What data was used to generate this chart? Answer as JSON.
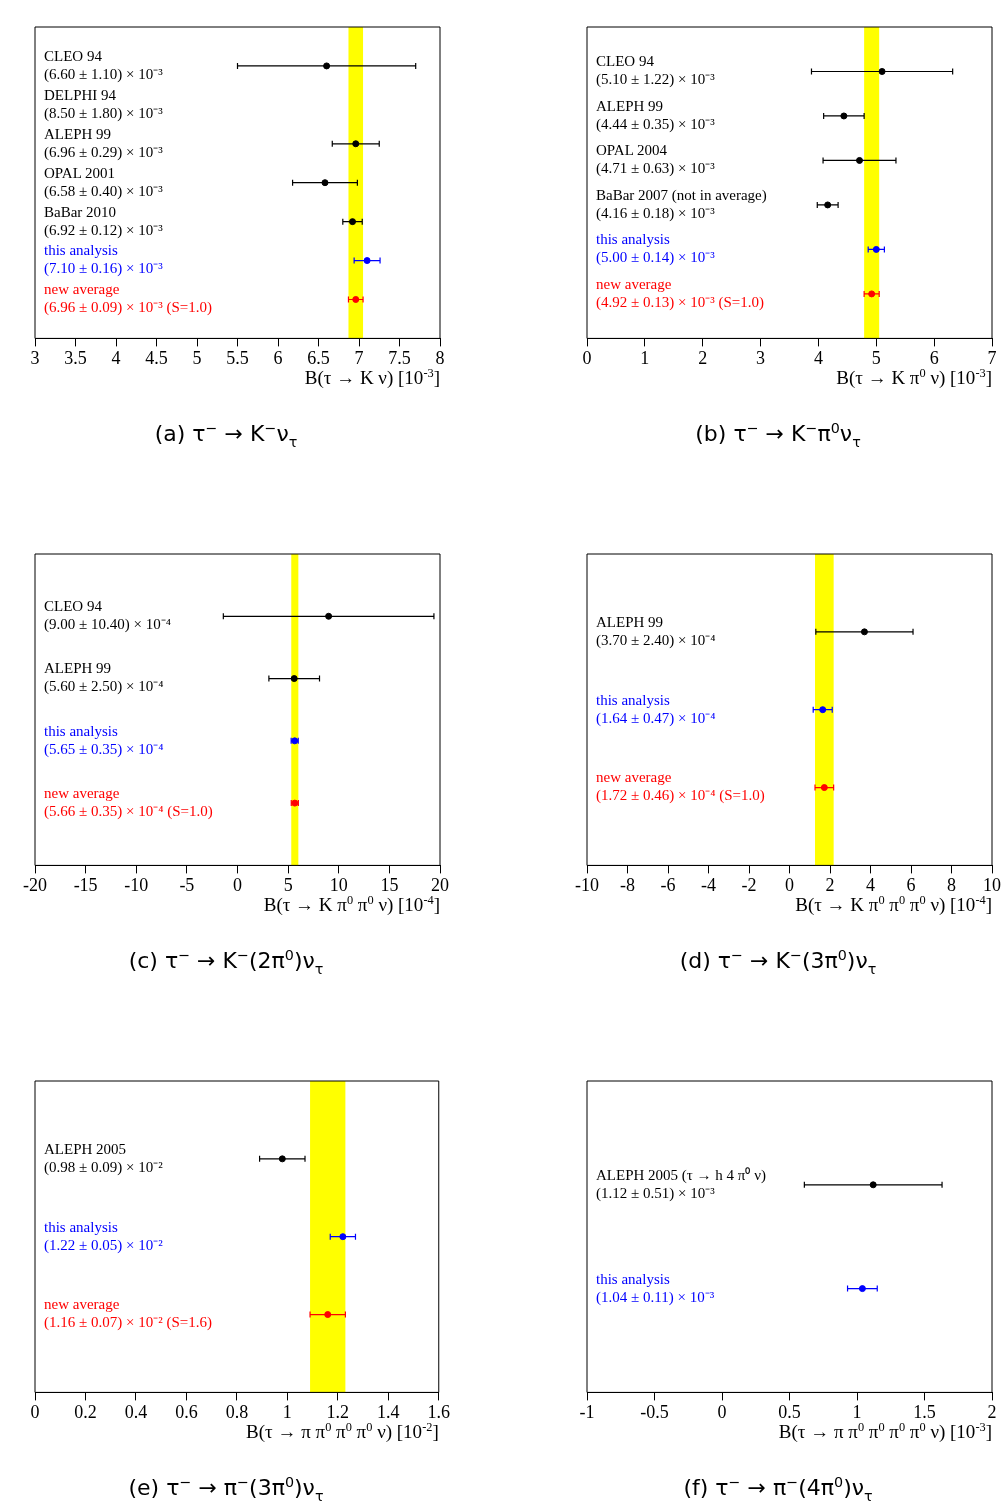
{
  "chart_data": [
    {
      "type": "scatter",
      "orientation": "horizontal",
      "title": "(a) τ$^{−}$ → K$^{−}$ν$_{τ}$",
      "xlabel": "B(τ → K ν) [10$^{-3}$]",
      "categories": [
        "CLEO 94\n(6.60 ± 1.10) × 10⁻³",
        "DELPHI 94\n(8.50 ± 1.80) × 10⁻³",
        "ALEPH 99\n(6.96 ± 0.29) × 10⁻³",
        "OPAL 2001\n(6.58 ± 0.40) × 10⁻³",
        "BaBar 2010\n(6.92 ± 0.12) × 10⁻³",
        "this analysis\n(7.10 ± 0.16) × 10⁻³",
        "new average\n(6.96 ± 0.09) × 10⁻³ (S=1.0)"
      ],
      "values": [
        6.6,
        null,
        6.96,
        6.58,
        6.92,
        7.1,
        6.96
      ],
      "errors": [
        1.1,
        null,
        0.29,
        0.4,
        0.12,
        0.16,
        0.09
      ],
      "colors": [
        "#000000",
        "#000000",
        "#000000",
        "#000000",
        "#000000",
        "#0000ff",
        "#ff0000"
      ],
      "xlim": [
        3,
        8
      ],
      "xticks": [
        3,
        3.5,
        4,
        4.5,
        5,
        5.5,
        6,
        6.5,
        7,
        7.5,
        8
      ],
      "bands": [
        {
          "axis": "x",
          "from": 6.87,
          "to": 7.05,
          "color": "#ffff00"
        }
      ]
    },
    {
      "type": "scatter",
      "orientation": "horizontal",
      "title": "(b) τ$^{−}$ → K$^{−}$π$^{0}$ν$_{τ}$",
      "xlabel": "B(τ → K π$^{0}$ ν) [10$^{-3}$]",
      "categories": [
        "CLEO 94\n(5.10 ± 1.22) × 10⁻³",
        "ALEPH 99\n(4.44 ± 0.35) × 10⁻³",
        "OPAL 2004\n(4.71 ± 0.63) × 10⁻³",
        "BaBar 2007 (not in average)\n(4.16 ± 0.18) × 10⁻³",
        "this analysis\n(5.00 ± 0.14) × 10⁻³",
        "new average\n(4.92 ± 0.13) × 10⁻³ (S=1.0)"
      ],
      "values": [
        5.1,
        4.44,
        4.71,
        4.16,
        5.0,
        4.92
      ],
      "errors": [
        1.22,
        0.35,
        0.63,
        0.18,
        0.14,
        0.13
      ],
      "colors": [
        "#000000",
        "#000000",
        "#000000",
        "#000000",
        "#0000ff",
        "#ff0000"
      ],
      "xlim": [
        0,
        7
      ],
      "xticks": [
        0,
        1,
        2,
        3,
        4,
        5,
        6,
        7
      ],
      "bands": [
        {
          "axis": "x",
          "from": 4.79,
          "to": 5.05,
          "color": "#ffff00"
        }
      ]
    },
    {
      "type": "scatter",
      "orientation": "horizontal",
      "title": "(c) τ$^{−}$ → K$^{−}$(2π$^{0}$)ν$_{τ}$",
      "xlabel": "B(τ → K π$^{0}$ π$^{0}$ ν) [10$^{-4}$]",
      "categories": [
        "CLEO 94\n(9.00 ± 10.40) × 10⁻⁴",
        "ALEPH 99\n(5.60 ± 2.50) × 10⁻⁴",
        "this analysis\n(5.65 ± 0.35) × 10⁻⁴",
        "new average\n(5.66 ± 0.35) × 10⁻⁴ (S=1.0)"
      ],
      "values": [
        9.0,
        5.6,
        5.65,
        5.66
      ],
      "errors": [
        10.4,
        2.5,
        0.35,
        0.35
      ],
      "colors": [
        "#000000",
        "#000000",
        "#0000ff",
        "#ff0000"
      ],
      "xlim": [
        -20,
        20
      ],
      "xticks": [
        -20,
        -15,
        -10,
        -5,
        0,
        5,
        10,
        15,
        20
      ],
      "bands": [
        {
          "axis": "x",
          "from": 5.31,
          "to": 6.01,
          "color": "#ffff00"
        }
      ]
    },
    {
      "type": "scatter",
      "orientation": "horizontal",
      "title": "(d) τ$^{−}$ → K$^{−}$(3π$^{0}$)ν$_{τ}$",
      "xlabel": "B(τ → K π$^{0}$ π$^{0}$ π$^{0}$ ν) [10$^{-4}$]",
      "categories": [
        "ALEPH 99\n(3.70 ± 2.40) × 10⁻⁴",
        "this analysis\n(1.64 ± 0.47) × 10⁻⁴",
        "new average\n(1.72 ± 0.46) × 10⁻⁴ (S=1.0)"
      ],
      "values": [
        3.7,
        1.64,
        1.72
      ],
      "errors": [
        2.4,
        0.47,
        0.46
      ],
      "colors": [
        "#000000",
        "#0000ff",
        "#ff0000"
      ],
      "xlim": [
        -10,
        10
      ],
      "xticks": [
        -10,
        -8,
        -6,
        -4,
        -2,
        0,
        2,
        4,
        6,
        8,
        10
      ],
      "bands": [
        {
          "axis": "x",
          "from": 1.26,
          "to": 2.18,
          "color": "#ffff00"
        }
      ]
    },
    {
      "type": "scatter",
      "orientation": "horizontal",
      "title": "(e) τ$^{−}$ → π$^{−}$(3π$^{0}$)ν$_{τ}$",
      "xlabel": "B(τ → π π$^{0}$ π$^{0}$ π$^{0}$ ν) [10$^{-2}$]",
      "categories": [
        "ALEPH 2005\n(0.98 ± 0.09) × 10⁻²",
        "this analysis\n(1.22 ± 0.05) × 10⁻²",
        "new average\n(1.16 ± 0.07) × 10⁻² (S=1.6)"
      ],
      "values": [
        0.98,
        1.22,
        1.16
      ],
      "errors": [
        0.09,
        0.05,
        0.07
      ],
      "colors": [
        "#000000",
        "#0000ff",
        "#ff0000"
      ],
      "xlim": [
        0,
        1.6
      ],
      "xticks": [
        0,
        0.2,
        0.4,
        0.6,
        0.8,
        1,
        1.2,
        1.4,
        1.6
      ],
      "bands": [
        {
          "axis": "x",
          "from": 1.09,
          "to": 1.23,
          "color": "#ffff00"
        }
      ]
    },
    {
      "type": "scatter",
      "orientation": "horizontal",
      "title": "(f) τ$^{−}$ → π$^{−}$(4π$^{0}$)ν$_{τ}$",
      "xlabel": "B(τ → π π$^{0}$ π$^{0}$ π$^{0}$ π$^{0}$ ν) [10$^{-3}$]",
      "categories": [
        "ALEPH 2005 (τ → h 4 π⁰ ν)\n(1.12 ± 0.51) × 10⁻³",
        "this analysis\n(1.04 ± 0.11) × 10⁻³"
      ],
      "values": [
        1.12,
        1.04
      ],
      "errors": [
        0.51,
        0.11
      ],
      "colors": [
        "#000000",
        "#0000ff"
      ],
      "xlim": [
        -1,
        2
      ],
      "xticks": [
        -1,
        -0.5,
        0,
        0.5,
        1,
        1.5,
        2
      ]
    }
  ]
}
